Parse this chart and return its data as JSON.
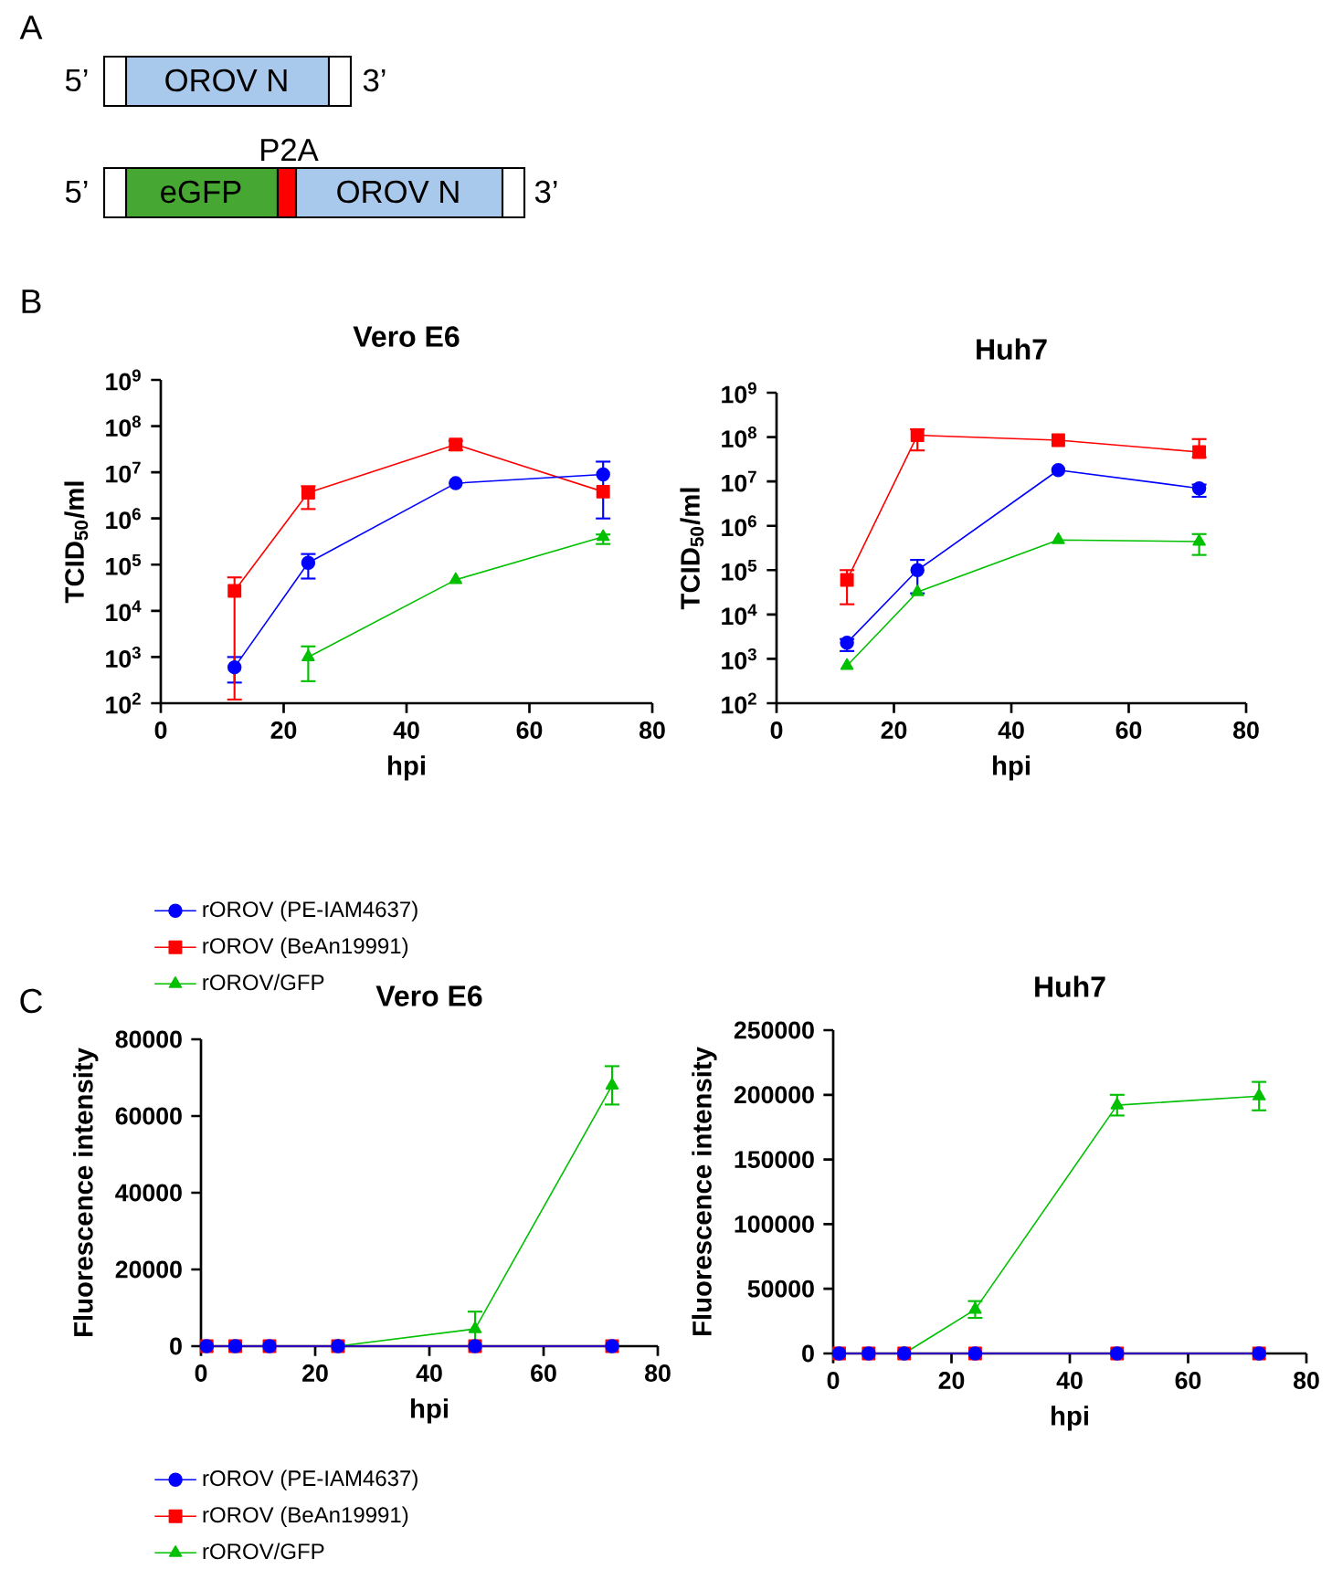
{
  "chart_data": [
    {
      "type": "other",
      "annotations": [
        "A",
        "5’",
        "OROV N",
        "3’",
        "5’",
        "eGFP",
        "P2A",
        "OROV N",
        "3’"
      ]
    },
    {
      "type": "line",
      "title": "Vero E6",
      "xlabel": "hpi",
      "ylabel": "TCID$_{50}$/ml",
      "annotations": [
        "B"
      ],
      "log": true,
      "legend": "bottom",
      "xlim": [
        0,
        80
      ],
      "xticks": [
        0,
        20,
        40,
        60,
        80
      ],
      "ylim": [
        100,
        1000000000
      ],
      "yticks": [
        {
          "value": 100,
          "label": "10$^{2}$"
        },
        {
          "value": 1000,
          "label": "10$^{3}$"
        },
        {
          "value": 10000,
          "label": "10$^{4}$"
        },
        {
          "value": 100000,
          "label": "10$^{5}$"
        },
        {
          "value": 1000000,
          "label": "10$^{6}$"
        },
        {
          "value": 10000000,
          "label": "10$^{7}$"
        },
        {
          "value": 100000000,
          "label": "10$^{8}$"
        },
        {
          "value": 1000000000,
          "label": "10$^{9}$"
        }
      ],
      "series": [
        {
          "name": "rOROV (PE-IAM4637)",
          "color": "#0000ff",
          "marker": "circle",
          "x": [
            12,
            24,
            48,
            72
          ],
          "values": [
            600,
            110000,
            5800000,
            9000000
          ],
          "errors": [
            [
              280,
              1000
            ],
            [
              50000,
              170000
            ],
            null,
            [
              1000000,
              17000000
            ]
          ]
        },
        {
          "name": "rOROV (BeAn19991)",
          "color": "#ff0000",
          "marker": "square",
          "x": [
            12,
            24,
            48,
            72
          ],
          "values": [
            27000,
            3600000,
            40000000,
            3800000
          ],
          "errors": [
            [
              120,
              53000
            ],
            [
              1600000,
              5000000
            ],
            [
              30000000,
              48000000
            ],
            null
          ]
        },
        {
          "name": "rOROV/GFP",
          "color": "#00c000",
          "marker": "triangle",
          "x": [
            24,
            48,
            72
          ],
          "values": [
            1000,
            47000,
            400000
          ],
          "errors": [
            [
              300,
              1700
            ],
            null,
            [
              280000,
              450000
            ]
          ]
        }
      ]
    },
    {
      "type": "line",
      "title": "Huh7",
      "xlabel": "hpi",
      "ylabel": "TCID$_{50}$/ml",
      "log": true,
      "xlim": [
        0,
        80
      ],
      "xticks": [
        0,
        20,
        40,
        60,
        80
      ],
      "ylim": [
        100,
        1000000000
      ],
      "yticks": [
        {
          "value": 100,
          "label": "10$^{2}$"
        },
        {
          "value": 1000,
          "label": "10$^{3}$"
        },
        {
          "value": 10000,
          "label": "10$^{4}$"
        },
        {
          "value": 100000,
          "label": "10$^{5}$"
        },
        {
          "value": 1000000,
          "label": "10$^{6}$"
        },
        {
          "value": 10000000,
          "label": "10$^{7}$"
        },
        {
          "value": 100000000,
          "label": "10$^{8}$"
        },
        {
          "value": 1000000000,
          "label": "10$^{9}$"
        }
      ],
      "series": [
        {
          "color": "#0000ff",
          "marker": "circle",
          "x": [
            12,
            24,
            48,
            72
          ],
          "values": [
            2300,
            100000,
            18000000,
            7000000
          ],
          "errors": [
            [
              1500,
              2800
            ],
            [
              30000,
              170000
            ],
            null,
            [
              4500000,
              8500000
            ]
          ]
        },
        {
          "color": "#ff0000",
          "marker": "square",
          "x": [
            12,
            24,
            48,
            72
          ],
          "values": [
            60000,
            110000000,
            85000000,
            46000000
          ],
          "errors": [
            [
              17000,
              100000
            ],
            [
              50000000,
              150000000
            ],
            null,
            [
              35000000,
              90000000
            ]
          ]
        },
        {
          "color": "#00c000",
          "marker": "triangle",
          "x": [
            12,
            24,
            48,
            72
          ],
          "values": [
            700,
            32000,
            480000,
            440000
          ],
          "errors": [
            null,
            null,
            null,
            [
              220000,
              650000
            ]
          ]
        }
      ]
    },
    {
      "type": "line",
      "title": "Vero E6",
      "xlabel": "hpi",
      "ylabel": "Fluorescence intensity",
      "annotations": [
        "C"
      ],
      "legend": "bottom",
      "xlim": [
        0,
        80
      ],
      "xticks": [
        0,
        20,
        40,
        60,
        80
      ],
      "ylim": [
        0,
        80000
      ],
      "yticks": [
        0,
        20000,
        40000,
        60000,
        80000
      ],
      "series": [
        {
          "name": "rOROV (PE-IAM4637)",
          "color": "#0000ff",
          "marker": "circle",
          "x": [
            1,
            6,
            12,
            24,
            48,
            72
          ],
          "values": [
            0,
            0,
            0,
            0,
            0,
            0
          ]
        },
        {
          "name": "rOROV (BeAn19991)",
          "color": "#ff0000",
          "marker": "square",
          "x": [
            1,
            6,
            12,
            24,
            48,
            72
          ],
          "values": [
            0,
            0,
            0,
            0,
            0,
            0
          ]
        },
        {
          "name": "rOROV/GFP",
          "color": "#00c000",
          "marker": "triangle",
          "x": [
            24,
            48,
            72
          ],
          "values": [
            0,
            4500,
            68000
          ],
          "errors": [
            null,
            4500,
            5000
          ]
        }
      ]
    },
    {
      "type": "line",
      "title": "Huh7",
      "xlabel": "hpi",
      "ylabel": "Fluorescence intensity",
      "xlim": [
        0,
        80
      ],
      "xticks": [
        0,
        20,
        40,
        60,
        80
      ],
      "ylim": [
        0,
        250000
      ],
      "yticks": [
        0,
        50000,
        100000,
        150000,
        200000,
        250000
      ],
      "series": [
        {
          "color": "#0000ff",
          "marker": "circle",
          "x": [
            1,
            6,
            12,
            24,
            48,
            72
          ],
          "values": [
            0,
            0,
            0,
            0,
            0,
            0
          ]
        },
        {
          "color": "#ff0000",
          "marker": "square",
          "x": [
            1,
            6,
            12,
            24,
            48,
            72
          ],
          "values": [
            0,
            0,
            0,
            0,
            0,
            0
          ]
        },
        {
          "color": "#00c000",
          "marker": "triangle",
          "x": [
            12,
            24,
            48,
            72
          ],
          "values": [
            0,
            34000,
            192000,
            199000
          ],
          "errors": [
            null,
            6500,
            8000,
            11000
          ]
        }
      ]
    }
  ]
}
